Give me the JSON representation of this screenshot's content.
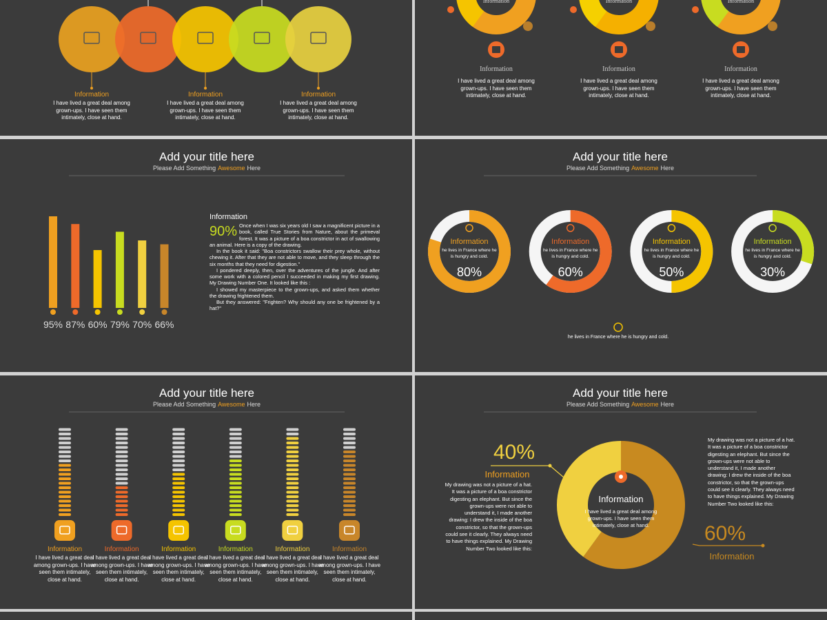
{
  "slides": [
    {
      "items": [
        {
          "label": "Information",
          "text": "I have lived a great deal among grown-ups. I have seen them intimately, close at hand."
        },
        {
          "label": "Information",
          "text": "I have lived a great deal among grown-ups. I have seen them intimately, close at hand."
        },
        {
          "label": "Information",
          "text": "I have lived a great deal among grown-ups. I have seen them intimately, close at hand."
        }
      ]
    },
    {
      "items": [
        {
          "ring_label": "Information",
          "label": "Information",
          "text": "I have lived a great deal among grown-ups. I have seen them intimately, close at hand."
        },
        {
          "ring_label": "Information",
          "label": "Information",
          "text": "I have lived a great deal among grown-ups. I have seen them intimately, close at hand."
        },
        {
          "ring_label": "Information",
          "label": "Information",
          "text": "I have lived a great deal among grown-ups. I have seen them intimately, close at hand."
        }
      ]
    },
    {
      "title": "Add your title here",
      "subtitle": [
        "Please Add Something",
        "Awesome",
        "Here"
      ],
      "chart": {
        "type": "bar",
        "values": [
          95,
          87,
          60,
          79,
          70,
          66
        ],
        "value_labels": [
          "95%",
          "87%",
          "60%",
          "79%",
          "70%",
          "66%"
        ],
        "colors": [
          "#f0a020",
          "#ee6a2a",
          "#f5c400",
          "#c8dc20",
          "#f0d040",
          "#c8862a"
        ],
        "ylim": [
          0,
          100
        ]
      },
      "info": {
        "heading": "Information",
        "highlight": 90,
        "highlight_label": "90%",
        "paragraphs": [
          "Once when I was six years old I saw a magnificent picture in a book, called True Stories from Nature, about the primeval forest. It was a picture of a boa constrictor in act of swallowing an animal. Here is a copy of the drawing.",
          "In the book it said: \"Boa constrictors swallow their prey whole, without chewing it. After that they are not able to move, and they sleep through the six months that they need for digestion.\"",
          "I pondered deeply, then, over the adventures of the jungle. And after some work with a colored pencil I succeeded in making my first drawing. My Drawing Number One. It looked like this :",
          "I showed my masterpiece to the grown-ups, and asked them whether the drawing frightened them.",
          "But they answered: \"Frighten? Why should any one be frightened by a hat?\""
        ]
      }
    },
    {
      "title": "Add your title here",
      "subtitle": [
        "Please Add Something",
        "Awesome",
        "Here"
      ],
      "chart": {
        "type": "donut",
        "values": [
          80,
          60,
          50,
          30
        ],
        "value_labels": [
          "80%",
          "60%",
          "50%",
          "30%"
        ],
        "colors": [
          "#f0a020",
          "#ee6a2a",
          "#f5c400",
          "#c8dc20"
        ],
        "labels": [
          "Information",
          "Information",
          "Information",
          "Information"
        ],
        "texts": [
          "he lives in France where he is hungry and cold.",
          "he lives in France where he is hungry and cold.",
          "he lives in France where he is hungry and cold.",
          "he lives in France where he is hungry and cold."
        ]
      },
      "footer": "he lives in France where he is hungry and cold."
    },
    {
      "title": "Add your title here",
      "subtitle": [
        "Please Add Something",
        "Awesome",
        "Here"
      ],
      "chart": {
        "type": "gauge",
        "values": [
          58,
          35,
          50,
          65,
          88,
          73
        ],
        "colors": [
          "#f0a020",
          "#ee6a2a",
          "#f5c400",
          "#c8dc20",
          "#f0d040",
          "#c8862a"
        ],
        "labels": [
          "Information",
          "Information",
          "Information",
          "Information",
          "Information",
          "Information"
        ],
        "texts": [
          "I have lived a great deal among grown-ups. I have seen them intimately, close at hand.",
          "I have lived a great deal among grown-ups. I have seen them intimately, close at hand.",
          "I have lived a great deal among grown-ups. I have seen them intimately, close at hand.",
          "I have lived a great deal among grown-ups. I have seen them intimately, close at hand.",
          "I have lived a great deal among grown-ups. I have seen them intimately, close at hand.",
          "I have lived a great deal among grown-ups. I have seen them intimately, close at hand."
        ]
      }
    },
    {
      "title": "Add your title here",
      "subtitle": [
        "Please Add Something",
        "Awesome",
        "Here"
      ],
      "chart": {
        "type": "donut",
        "values": [
          40,
          60
        ],
        "value_labels": [
          "40%",
          "60%"
        ],
        "colors": [
          "#f0d040",
          "#c88a20"
        ],
        "labels": [
          "Information",
          "Information"
        ],
        "center_label": "Information",
        "center_text": "I have lived a great deal among grown-ups. I have seen them intimately, close at hand."
      },
      "left_text": "My drawing was not a picture of a hat. It was a picture of a boa constrictor digesting an elephant. But since the grown-ups were not able to understand it, I made another drawing: I drew the inside of the boa constrictor, so that the grown-ups could see it clearly. They always need to have things explained. My Drawing Number Two looked like this:",
      "right_text": "My drawing was not a picture of a hat. It was a picture of a boa constrictor digesting an elephant. But since the grown-ups were not able to understand it, I made another drawing: I drew the inside of the boa constrictor, so that the grown-ups could see it clearly. They always need to have things explained. My Drawing Number Two looked like this:"
    }
  ]
}
